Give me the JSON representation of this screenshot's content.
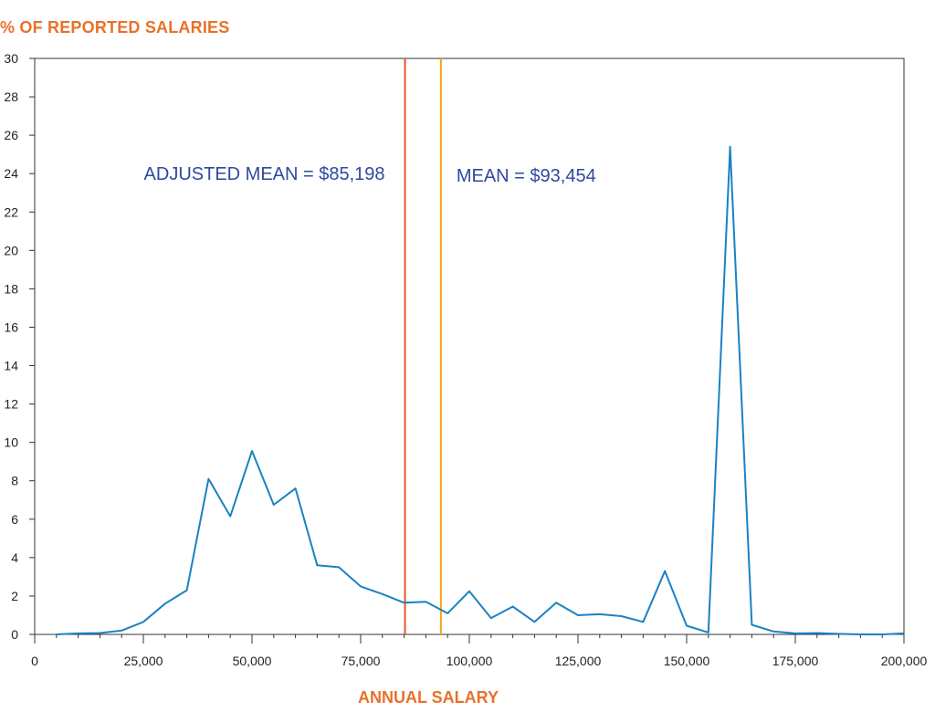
{
  "chart_data": {
    "type": "line",
    "title": "",
    "ylabel": "% OF REPORTED SALARIES",
    "xlabel": "ANNUAL SALARY",
    "xlim": [
      0,
      200000
    ],
    "ylim": [
      0,
      30
    ],
    "xticks": [
      0,
      25000,
      50000,
      75000,
      100000,
      125000,
      150000,
      175000,
      200000
    ],
    "xtick_labels": [
      "0",
      "25,000",
      "50,000",
      "75,000",
      "100,000",
      "125,000",
      "150,000",
      "175,000",
      "200,000"
    ],
    "yticks": [
      0,
      2,
      4,
      6,
      8,
      10,
      12,
      14,
      16,
      18,
      20,
      22,
      24,
      26,
      28,
      30
    ],
    "ytick_labels": [
      "0",
      "2",
      "4",
      "6",
      "8",
      "10",
      "12",
      "14",
      "16",
      "18",
      "20",
      "22",
      "24",
      "26",
      "28",
      "30"
    ],
    "grid": false,
    "series": [
      {
        "color": "#1a82c4",
        "x": [
          5000,
          10000,
          15000,
          20000,
          25000,
          30000,
          35000,
          40000,
          45000,
          50000,
          55000,
          60000,
          65000,
          70000,
          75000,
          80000,
          85000,
          90000,
          95000,
          100000,
          105000,
          110000,
          115000,
          120000,
          125000,
          130000,
          135000,
          140000,
          145000,
          150000,
          155000,
          160000,
          165000,
          170000,
          175000,
          180000,
          185000,
          190000,
          195000,
          200000
        ],
        "y": [
          0.0,
          0.05,
          0.07,
          0.2,
          0.65,
          1.6,
          2.3,
          8.1,
          6.15,
          9.55,
          6.75,
          7.6,
          3.6,
          3.5,
          2.5,
          2.1,
          1.65,
          1.7,
          1.1,
          2.25,
          0.85,
          1.45,
          0.65,
          1.65,
          1.0,
          1.05,
          0.95,
          0.65,
          3.3,
          0.45,
          0.1,
          25.4,
          0.5,
          0.15,
          0.05,
          0.07,
          0.03,
          0.0,
          0.0,
          0.05
        ]
      }
    ],
    "vlines": [
      {
        "x": 85198,
        "label": "ADJUSTED MEAN = $85,198",
        "color": "#e05a1e"
      },
      {
        "x": 93454,
        "label": "MEAN = $93,454",
        "color": "#f7a21b"
      }
    ]
  }
}
